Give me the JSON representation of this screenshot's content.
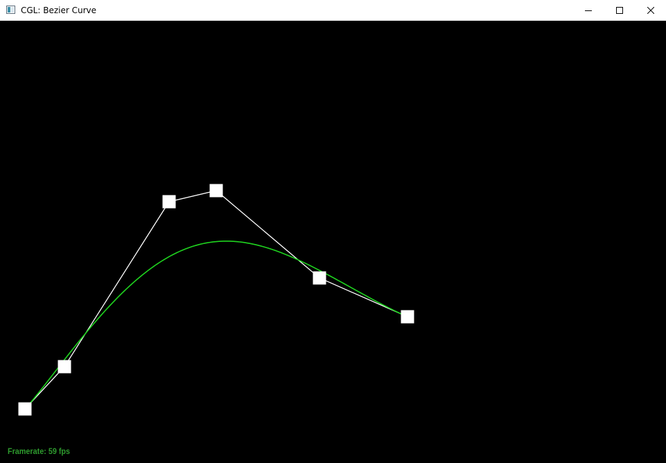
{
  "window": {
    "title": "CGL: Bezier Curve"
  },
  "controls": {
    "minimize_icon": "minimize-icon",
    "maximize_icon": "maximize-icon",
    "close_icon": "close-icon"
  },
  "scene": {
    "framerate_text": "Framerate: 59 fps",
    "colors": {
      "background": "#000000",
      "control_polygon": "#ffffff",
      "control_point": "#ffffff",
      "curve": "#1fd41f",
      "framerate": "#2e9b2e"
    }
  }
}
